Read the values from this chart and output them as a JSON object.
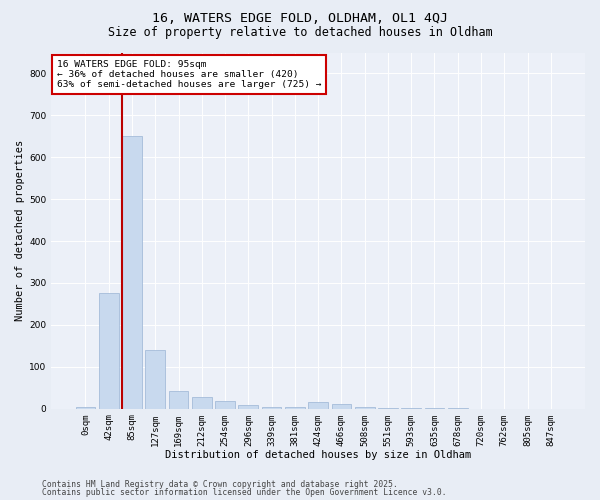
{
  "title_line1": "16, WATERS EDGE FOLD, OLDHAM, OL1 4QJ",
  "title_line2": "Size of property relative to detached houses in Oldham",
  "xlabel": "Distribution of detached houses by size in Oldham",
  "ylabel": "Number of detached properties",
  "categories": [
    "0sqm",
    "42sqm",
    "85sqm",
    "127sqm",
    "169sqm",
    "212sqm",
    "254sqm",
    "296sqm",
    "339sqm",
    "381sqm",
    "424sqm",
    "466sqm",
    "508sqm",
    "551sqm",
    "593sqm",
    "635sqm",
    "678sqm",
    "720sqm",
    "762sqm",
    "805sqm",
    "847sqm"
  ],
  "values": [
    5,
    275,
    650,
    140,
    42,
    27,
    18,
    10,
    5,
    5,
    15,
    12,
    3,
    2,
    1,
    1,
    1,
    0,
    0,
    0,
    0
  ],
  "bar_color": "#c8d9ee",
  "bar_edge_color": "#9ab4d4",
  "vline_color": "#bb0000",
  "annotation_text": "16 WATERS EDGE FOLD: 95sqm\n← 36% of detached houses are smaller (420)\n63% of semi-detached houses are larger (725) →",
  "annotation_box_color": "#ffffff",
  "annotation_box_edge_color": "#cc0000",
  "ylim": [
    0,
    850
  ],
  "yticks": [
    0,
    100,
    200,
    300,
    400,
    500,
    600,
    700,
    800
  ],
  "bg_color": "#e8edf5",
  "plot_bg_color": "#ecf0f8",
  "footer_line1": "Contains HM Land Registry data © Crown copyright and database right 2025.",
  "footer_line2": "Contains public sector information licensed under the Open Government Licence v3.0.",
  "title_fontsize": 9.5,
  "subtitle_fontsize": 8.5,
  "axis_label_fontsize": 7.5,
  "tick_fontsize": 6.5,
  "annotation_fontsize": 6.8,
  "footer_fontsize": 5.8,
  "vline_bar_index": 2
}
